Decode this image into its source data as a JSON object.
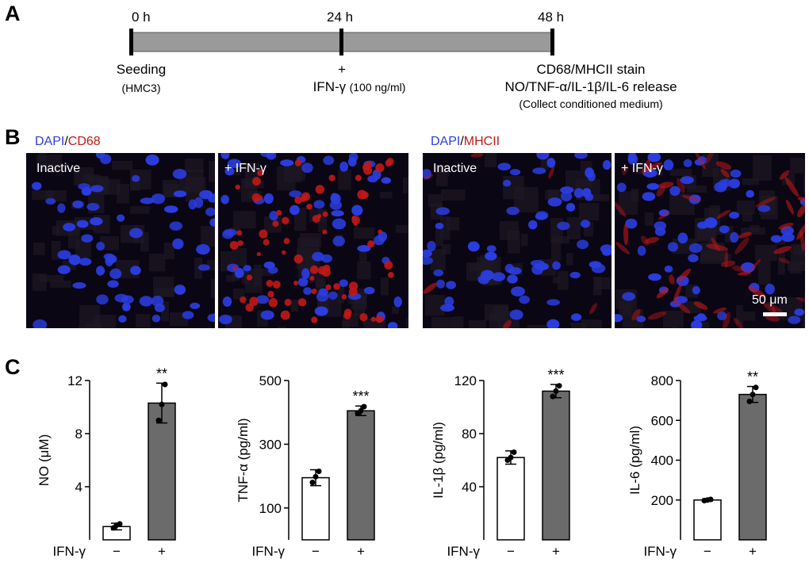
{
  "panels": {
    "a": "A",
    "b": "B",
    "c": "C"
  },
  "timeline": {
    "times": [
      "0 h",
      "24 h",
      "48 h"
    ],
    "seeding": "Seeding",
    "cell_line": "(HMC3)",
    "plus": "+",
    "ifn_treatment_main": "IFN-γ",
    "ifn_treatment_dose": "(100 ng/ml)",
    "stain": "CD68/MHCII stain",
    "release": "NO/TNF-α/IL-1β/IL-6 release",
    "collect": "(Collect conditioned medium)"
  },
  "micrographs": {
    "left_title": {
      "dapi": "DAPI",
      "slash": "/",
      "marker": "CD68"
    },
    "right_title": {
      "dapi": "DAPI",
      "slash": "/",
      "marker": "MHCII"
    },
    "labels": [
      "Inactive",
      "+ IFN-γ",
      "Inactive",
      "+ IFN-γ"
    ],
    "scale_bar": "50 μm",
    "colors": {
      "dapi": "#2b3de0",
      "marker": "#c01818"
    }
  },
  "chart_data": [
    {
      "type": "bar",
      "categories": [
        "−",
        "+"
      ],
      "xlabel": "IFN-γ",
      "ylabel": "NO (μM)",
      "values": [
        1.0,
        10.3
      ],
      "errors": [
        0.25,
        1.5
      ],
      "points": [
        [
          0.9,
          1.1,
          1.2
        ],
        [
          9.0,
          10.2,
          11.7
        ]
      ],
      "significance": [
        "",
        "**"
      ],
      "ylim": [
        0,
        12
      ],
      "yticks": [
        4,
        8,
        12
      ],
      "colors": [
        "#ffffff",
        "#6b6b6b"
      ]
    },
    {
      "type": "bar",
      "categories": [
        "−",
        "+"
      ],
      "xlabel": "IFN-γ",
      "ylabel": "TNF-α (pg/ml)",
      "values": [
        195,
        405
      ],
      "errors": [
        25,
        15
      ],
      "points": [
        [
          180,
          198,
          215
        ],
        [
          398,
          405,
          418
        ]
      ],
      "significance": [
        "",
        "***"
      ],
      "ylim": [
        0,
        500
      ],
      "yticks": [
        100,
        300,
        500
      ],
      "colors": [
        "#ffffff",
        "#6b6b6b"
      ]
    },
    {
      "type": "bar",
      "categories": [
        "−",
        "+"
      ],
      "xlabel": "IFN-γ",
      "ylabel": "IL-1β (pg/ml)",
      "values": [
        62,
        112
      ],
      "errors": [
        5,
        5
      ],
      "points": [
        [
          60,
          62,
          66
        ],
        [
          108,
          112,
          116
        ]
      ],
      "significance": [
        "",
        "***"
      ],
      "ylim": [
        0,
        120
      ],
      "yticks": [
        40,
        80,
        120
      ],
      "colors": [
        "#ffffff",
        "#6b6b6b"
      ]
    },
    {
      "type": "bar",
      "categories": [
        "−",
        "+"
      ],
      "xlabel": "IFN-γ",
      "ylabel": "IL-6 (pg/ml)",
      "values": [
        200,
        730
      ],
      "errors": [
        5,
        40
      ],
      "points": [
        [
          197,
          200,
          203
        ],
        [
          695,
          730,
          765
        ]
      ],
      "significance": [
        "",
        "**"
      ],
      "ylim": [
        0,
        800
      ],
      "yticks": [
        200,
        400,
        600,
        800
      ],
      "colors": [
        "#ffffff",
        "#6b6b6b"
      ]
    }
  ]
}
